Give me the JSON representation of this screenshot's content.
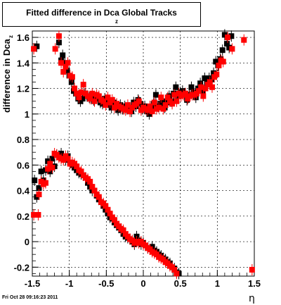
{
  "header": {
    "title": "Fitted difference in Dca  Global Tracks",
    "title_sub": "z"
  },
  "footer": {
    "timestamp": "Fri Oct 28 09:16:23 2011"
  },
  "chart_data": {
    "type": "scatter",
    "title": "Fitted difference in Dca  Global Tracks",
    "xlabel": "η",
    "ylabel": "difference in Dca",
    "ylabel_sub": "z",
    "xlim": [
      -1.5,
      1.5
    ],
    "ylim": [
      -0.27,
      1.65
    ],
    "grid": true,
    "x_ticks": [
      -1.5,
      -1,
      -0.5,
      0,
      0.5,
      1,
      1.5
    ],
    "x_tick_labels": [
      "-1.5",
      "-1",
      "-0.5",
      "0",
      "0.5",
      "1",
      "1.5"
    ],
    "y_ticks": [
      -0.2,
      0,
      0.2,
      0.4,
      0.6,
      0.8,
      1,
      1.2,
      1.4,
      1.6
    ],
    "y_tick_labels": [
      "-0.2",
      "0",
      "0.2",
      "0.4",
      "0.6",
      "0.8",
      "1",
      "1.2",
      "1.4",
      "1.6"
    ],
    "colors": {
      "black": "#000000",
      "red": "#ff0000"
    },
    "series": [
      {
        "color": "black",
        "marker": "square",
        "points": [
          [
            -1.44,
            1.53
          ],
          [
            -1.14,
            1.56
          ],
          [
            -1.11,
            1.42
          ],
          [
            -1.09,
            1.46
          ],
          [
            -1.06,
            1.4
          ],
          [
            -1.03,
            1.34
          ],
          [
            -1.0,
            1.3
          ],
          [
            -0.97,
            1.25
          ],
          [
            -0.94,
            1.18
          ],
          [
            -0.91,
            1.16
          ],
          [
            -0.88,
            1.12
          ],
          [
            -0.85,
            1.1
          ],
          [
            -0.82,
            1.12
          ],
          [
            -0.79,
            1.16
          ],
          [
            -0.76,
            1.14
          ],
          [
            -0.73,
            1.13
          ],
          [
            -0.7,
            1.12
          ],
          [
            -0.67,
            1.11
          ],
          [
            -0.64,
            1.13
          ],
          [
            -0.61,
            1.12
          ],
          [
            -0.58,
            1.09
          ],
          [
            -0.55,
            1.08
          ],
          [
            -0.52,
            1.12
          ],
          [
            -0.49,
            1.1
          ],
          [
            -0.46,
            1.07
          ],
          [
            -0.43,
            1.05
          ],
          [
            -0.4,
            1.09
          ],
          [
            -0.37,
            1.06
          ],
          [
            -0.34,
            1.03
          ],
          [
            -0.31,
            1.07
          ],
          [
            -0.28,
            1.04
          ],
          [
            -0.25,
            1.06
          ],
          [
            -0.22,
            1.04
          ],
          [
            -0.19,
            1.05
          ],
          [
            -0.16,
            1.02
          ],
          [
            -0.13,
            1.09
          ],
          [
            -0.1,
            1.06
          ],
          [
            -0.07,
            1.11
          ],
          [
            -0.04,
            1.08
          ],
          [
            -0.01,
            1.04
          ],
          [
            0.02,
            1.06
          ],
          [
            0.05,
            1.02
          ],
          [
            0.08,
            1.0
          ],
          [
            0.11,
            1.05
          ],
          [
            0.14,
            1.08
          ],
          [
            0.17,
            1.15
          ],
          [
            0.2,
            1.06
          ],
          [
            0.23,
            1.08
          ],
          [
            0.26,
            1.1
          ],
          [
            0.29,
            1.05
          ],
          [
            0.32,
            1.09
          ],
          [
            0.35,
            1.14
          ],
          [
            0.38,
            1.1
          ],
          [
            0.41,
            1.16
          ],
          [
            0.44,
            1.21
          ],
          [
            0.47,
            1.14
          ],
          [
            0.5,
            1.17
          ],
          [
            0.53,
            1.18
          ],
          [
            0.56,
            1.16
          ],
          [
            0.59,
            1.11
          ],
          [
            0.62,
            1.15
          ],
          [
            0.65,
            1.21
          ],
          [
            0.68,
            1.17
          ],
          [
            0.71,
            1.13
          ],
          [
            0.74,
            1.2
          ],
          [
            0.77,
            1.24
          ],
          [
            0.8,
            1.18
          ],
          [
            0.83,
            1.28
          ],
          [
            0.86,
            1.24
          ],
          [
            0.89,
            1.28
          ],
          [
            0.92,
            1.27
          ],
          [
            0.95,
            1.32
          ],
          [
            0.98,
            1.41
          ],
          [
            1.01,
            1.38
          ],
          [
            1.04,
            1.43
          ],
          [
            1.07,
            1.5
          ],
          [
            1.1,
            1.62
          ],
          [
            1.13,
            1.55
          ],
          [
            1.16,
            1.52
          ],
          [
            1.19,
            1.61
          ],
          [
            -1.47,
            0.48
          ],
          [
            -1.44,
            0.35
          ],
          [
            -1.41,
            0.42
          ],
          [
            -1.38,
            0.55
          ],
          [
            -1.35,
            0.48
          ],
          [
            -1.32,
            0.56
          ],
          [
            -1.29,
            0.63
          ],
          [
            -1.26,
            0.55
          ],
          [
            -1.23,
            0.65
          ],
          [
            -1.2,
            0.59
          ],
          [
            -1.17,
            0.68
          ],
          [
            -1.14,
            0.67
          ],
          [
            -1.11,
            0.69
          ],
          [
            -1.08,
            0.66
          ],
          [
            -1.05,
            0.64
          ],
          [
            -1.02,
            0.67
          ],
          [
            -0.99,
            0.62
          ],
          [
            -0.96,
            0.6
          ],
          [
            -0.93,
            0.58
          ],
          [
            -0.9,
            0.56
          ],
          [
            -0.87,
            0.54
          ],
          [
            -0.84,
            0.53
          ],
          [
            -0.81,
            0.52
          ],
          [
            -0.78,
            0.5
          ],
          [
            -0.75,
            0.46
          ],
          [
            -0.72,
            0.43
          ],
          [
            -0.69,
            0.4
          ],
          [
            -0.66,
            0.4
          ],
          [
            -0.63,
            0.36
          ],
          [
            -0.6,
            0.33
          ],
          [
            -0.57,
            0.31
          ],
          [
            -0.54,
            0.28
          ],
          [
            -0.51,
            0.25
          ],
          [
            -0.48,
            0.22
          ],
          [
            -0.45,
            0.19
          ],
          [
            -0.42,
            0.18
          ],
          [
            -0.39,
            0.15
          ],
          [
            -0.36,
            0.13
          ],
          [
            -0.33,
            0.11
          ],
          [
            -0.3,
            0.09
          ],
          [
            -0.27,
            0.06
          ],
          [
            -0.24,
            0.04
          ],
          [
            -0.21,
            0.03
          ],
          [
            -0.18,
            0.02
          ],
          [
            -0.15,
            0.0
          ],
          [
            -0.12,
            -0.02
          ],
          [
            -0.09,
            0.04
          ],
          [
            -0.06,
            0.01
          ],
          [
            -0.03,
            -0.02
          ],
          [
            0.0,
            -0.01
          ],
          [
            0.03,
            -0.03
          ],
          [
            0.06,
            -0.05
          ],
          [
            0.09,
            -0.06
          ],
          [
            0.12,
            -0.04
          ],
          [
            0.15,
            -0.07
          ],
          [
            0.18,
            -0.08
          ],
          [
            0.21,
            -0.1
          ],
          [
            0.24,
            -0.11
          ],
          [
            0.27,
            -0.13
          ],
          [
            0.3,
            -0.14
          ],
          [
            0.33,
            -0.16
          ],
          [
            0.36,
            -0.17
          ],
          [
            0.39,
            -0.2
          ],
          [
            0.42,
            -0.21
          ],
          [
            0.45,
            -0.24
          ],
          [
            0.48,
            -0.25
          ]
        ]
      },
      {
        "color": "red",
        "marker": "square",
        "points": [
          [
            -1.48,
            1.51
          ],
          [
            -1.19,
            1.51
          ],
          [
            -1.14,
            1.61
          ],
          [
            -1.11,
            1.4
          ],
          [
            -1.08,
            1.33
          ],
          [
            -1.05,
            1.37
          ],
          [
            -1.02,
            1.4
          ],
          [
            -0.99,
            1.3
          ],
          [
            -0.96,
            1.29
          ],
          [
            -0.93,
            1.2
          ],
          [
            -0.9,
            1.16
          ],
          [
            -0.87,
            1.13
          ],
          [
            -0.84,
            1.17
          ],
          [
            -0.81,
            1.23
          ],
          [
            -0.78,
            1.16
          ],
          [
            -0.75,
            1.14
          ],
          [
            -0.72,
            1.12
          ],
          [
            -0.69,
            1.16
          ],
          [
            -0.66,
            1.1
          ],
          [
            -0.63,
            1.15
          ],
          [
            -0.6,
            1.14
          ],
          [
            -0.57,
            1.11
          ],
          [
            -0.54,
            1.1
          ],
          [
            -0.51,
            1.07
          ],
          [
            -0.48,
            1.13
          ],
          [
            -0.45,
            1.09
          ],
          [
            -0.42,
            1.11
          ],
          [
            -0.39,
            1.05
          ],
          [
            -0.36,
            1.08
          ],
          [
            -0.33,
            1.06
          ],
          [
            -0.3,
            1.05
          ],
          [
            -0.27,
            1.04
          ],
          [
            -0.24,
            1.03
          ],
          [
            -0.21,
            1.07
          ],
          [
            -0.18,
            1.02
          ],
          [
            -0.15,
            1.05
          ],
          [
            -0.12,
            1.07
          ],
          [
            -0.09,
            1.08
          ],
          [
            -0.06,
            1.1
          ],
          [
            -0.03,
            1.03
          ],
          [
            0.0,
            1.05
          ],
          [
            0.03,
            1.04
          ],
          [
            0.06,
            1.03
          ],
          [
            0.09,
            1.06
          ],
          [
            0.12,
            1.02
          ],
          [
            0.15,
            1.09
          ],
          [
            0.18,
            1.04
          ],
          [
            0.21,
            1.05
          ],
          [
            0.24,
            1.13
          ],
          [
            0.27,
            1.04
          ],
          [
            0.3,
            1.07
          ],
          [
            0.33,
            1.13
          ],
          [
            0.36,
            1.1
          ],
          [
            0.39,
            1.08
          ],
          [
            0.42,
            1.15
          ],
          [
            0.45,
            1.1
          ],
          [
            0.48,
            1.16
          ],
          [
            0.51,
            1.14
          ],
          [
            0.54,
            1.15
          ],
          [
            0.57,
            1.16
          ],
          [
            0.6,
            1.12
          ],
          [
            0.63,
            1.14
          ],
          [
            0.66,
            1.15
          ],
          [
            0.69,
            1.15
          ],
          [
            0.72,
            1.16
          ],
          [
            0.75,
            1.18
          ],
          [
            0.78,
            1.21
          ],
          [
            0.81,
            1.14
          ],
          [
            0.84,
            1.2
          ],
          [
            0.87,
            1.23
          ],
          [
            0.9,
            1.25
          ],
          [
            0.93,
            1.21
          ],
          [
            0.96,
            1.29
          ],
          [
            0.99,
            1.31
          ],
          [
            1.02,
            1.38
          ],
          [
            1.05,
            1.42
          ],
          [
            1.08,
            1.41
          ],
          [
            1.14,
            1.6
          ],
          [
            1.2,
            1.51
          ],
          [
            1.36,
            1.58
          ],
          [
            1.47,
            -0.22
          ],
          [
            -1.48,
            0.21
          ],
          [
            -1.42,
            0.21
          ],
          [
            -1.41,
            0.37
          ],
          [
            -1.38,
            0.47
          ],
          [
            -1.35,
            0.45
          ],
          [
            -1.32,
            0.46
          ],
          [
            -1.29,
            0.57
          ],
          [
            -1.26,
            0.61
          ],
          [
            -1.23,
            0.58
          ],
          [
            -1.2,
            0.69
          ],
          [
            -1.17,
            0.68
          ],
          [
            -1.14,
            0.66
          ],
          [
            -1.11,
            0.65
          ],
          [
            -1.08,
            0.64
          ],
          [
            -1.05,
            0.67
          ],
          [
            -1.02,
            0.65
          ],
          [
            -0.99,
            0.61
          ],
          [
            -0.96,
            0.62
          ],
          [
            -0.93,
            0.61
          ],
          [
            -0.9,
            0.59
          ],
          [
            -0.87,
            0.56
          ],
          [
            -0.84,
            0.55
          ],
          [
            -0.81,
            0.52
          ],
          [
            -0.78,
            0.5
          ],
          [
            -0.75,
            0.49
          ],
          [
            -0.72,
            0.47
          ],
          [
            -0.69,
            0.43
          ],
          [
            -0.66,
            0.4
          ],
          [
            -0.63,
            0.37
          ],
          [
            -0.6,
            0.35
          ],
          [
            -0.57,
            0.31
          ],
          [
            -0.54,
            0.3
          ],
          [
            -0.51,
            0.28
          ],
          [
            -0.48,
            0.25
          ],
          [
            -0.45,
            0.22
          ],
          [
            -0.42,
            0.19
          ],
          [
            -0.39,
            0.17
          ],
          [
            -0.36,
            0.14
          ],
          [
            -0.33,
            0.12
          ],
          [
            -0.3,
            0.1
          ],
          [
            -0.27,
            0.09
          ],
          [
            -0.24,
            0.06
          ],
          [
            -0.21,
            0.04
          ],
          [
            -0.18,
            0.02
          ],
          [
            -0.15,
            0.01
          ],
          [
            -0.12,
            -0.01
          ],
          [
            -0.09,
            0.0
          ],
          [
            -0.06,
            -0.01
          ],
          [
            -0.03,
            0.0
          ],
          [
            0.0,
            -0.02
          ],
          [
            0.03,
            -0.03
          ],
          [
            0.06,
            -0.05
          ],
          [
            0.09,
            -0.06
          ],
          [
            0.12,
            -0.08
          ],
          [
            0.15,
            -0.09
          ],
          [
            0.18,
            -0.1
          ],
          [
            0.21,
            -0.12
          ],
          [
            0.24,
            -0.13
          ],
          [
            0.27,
            -0.14
          ],
          [
            0.3,
            -0.16
          ],
          [
            0.33,
            -0.17
          ],
          [
            0.36,
            -0.19
          ],
          [
            0.39,
            -0.2
          ],
          [
            0.42,
            -0.22
          ],
          [
            0.45,
            -0.25
          ]
        ]
      }
    ]
  }
}
